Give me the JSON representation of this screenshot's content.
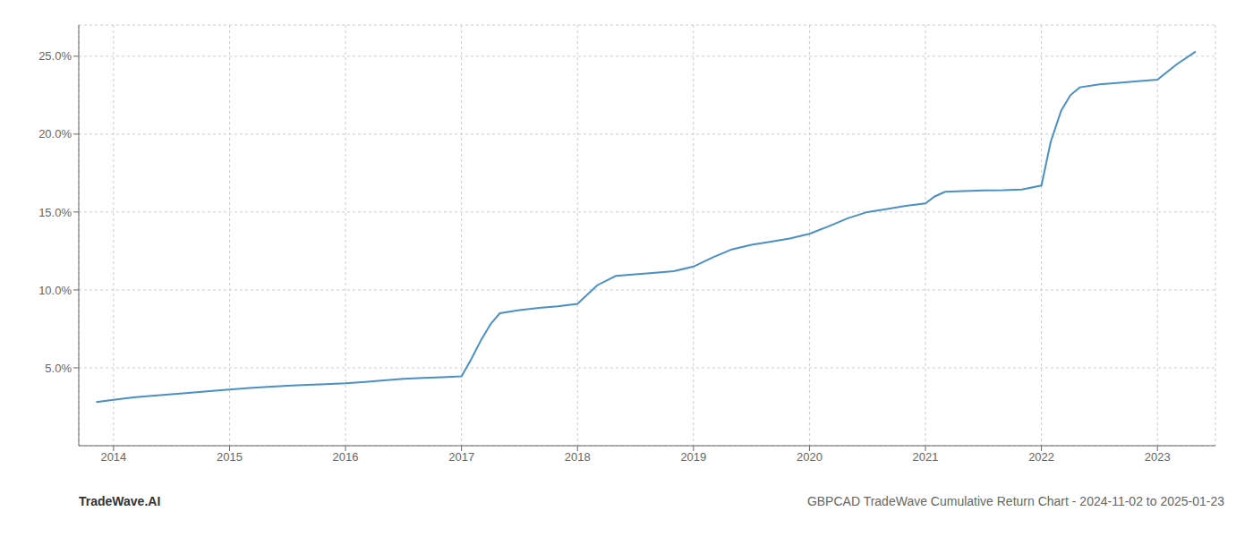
{
  "chart_data": {
    "type": "line",
    "title": "GBPCAD TradeWave Cumulative Return Chart - 2024-11-02 to 2025-01-23",
    "annotations": [
      "TradeWave.AI"
    ],
    "x": [
      2013.85,
      2014.0,
      2014.17,
      2014.33,
      2014.5,
      2014.67,
      2014.83,
      2015.0,
      2015.17,
      2015.33,
      2015.5,
      2015.67,
      2015.83,
      2016.0,
      2016.17,
      2016.33,
      2016.5,
      2016.67,
      2016.83,
      2017.0,
      2017.08,
      2017.17,
      2017.25,
      2017.33,
      2017.5,
      2017.67,
      2017.83,
      2018.0,
      2018.17,
      2018.33,
      2018.5,
      2018.67,
      2018.83,
      2019.0,
      2019.17,
      2019.33,
      2019.5,
      2019.67,
      2019.83,
      2020.0,
      2020.17,
      2020.33,
      2020.5,
      2020.67,
      2020.83,
      2021.0,
      2021.08,
      2021.17,
      2021.33,
      2021.5,
      2021.67,
      2021.83,
      2022.0,
      2022.08,
      2022.17,
      2022.25,
      2022.33,
      2022.5,
      2022.67,
      2022.83,
      2023.0,
      2023.17,
      2023.33
    ],
    "values": [
      2.8,
      2.95,
      3.1,
      3.2,
      3.3,
      3.4,
      3.5,
      3.6,
      3.7,
      3.78,
      3.85,
      3.9,
      3.95,
      4.0,
      4.1,
      4.2,
      4.3,
      4.35,
      4.4,
      4.45,
      5.5,
      6.8,
      7.8,
      8.5,
      8.7,
      8.85,
      8.95,
      9.1,
      10.3,
      10.9,
      11.0,
      11.1,
      11.2,
      11.5,
      12.1,
      12.6,
      12.9,
      13.1,
      13.3,
      13.6,
      14.1,
      14.6,
      15.0,
      15.2,
      15.4,
      15.55,
      16.0,
      16.3,
      16.35,
      16.38,
      16.4,
      16.45,
      16.7,
      19.5,
      21.5,
      22.5,
      23.0,
      23.2,
      23.3,
      23.4,
      23.5,
      24.5,
      25.3
    ],
    "color": "#4a90c4",
    "xlim": [
      2013.7,
      2023.5
    ],
    "xticks": [
      2014,
      2015,
      2016,
      2017,
      2018,
      2019,
      2020,
      2021,
      2022,
      2023
    ],
    "ylim": [
      0,
      27
    ],
    "yticks": [
      {
        "value": 5.0,
        "label": "5.0%"
      },
      {
        "value": 10.0,
        "label": "10.0%"
      },
      {
        "value": 15.0,
        "label": "15.0%"
      },
      {
        "value": 20.0,
        "label": "20.0%"
      },
      {
        "value": 25.0,
        "label": "25.0%"
      }
    ],
    "grid": true
  }
}
